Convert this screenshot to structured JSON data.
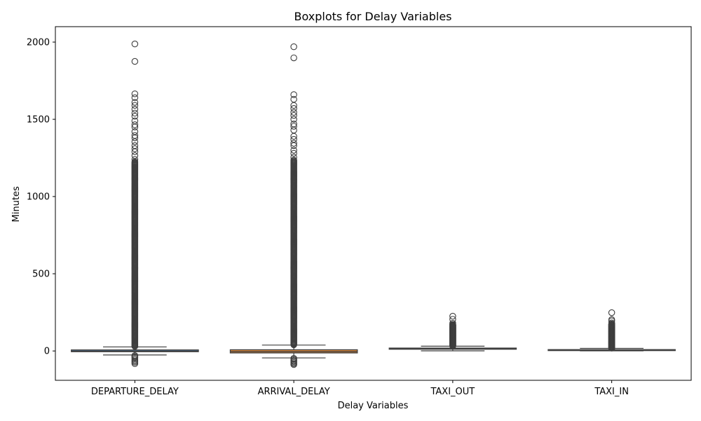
{
  "chart_data": {
    "type": "box",
    "title": "Boxplots for Delay Variables",
    "xlabel": "Delay Variables",
    "ylabel": "Minutes",
    "ylim": [
      -190,
      2100
    ],
    "yticks": [
      0,
      500,
      1000,
      1500,
      2000
    ],
    "grid": false,
    "categories": [
      "DEPARTURE_DELAY",
      "ARRIVAL_DELAY",
      "TAXI_OUT",
      "TAXI_IN"
    ],
    "colors": [
      "#4c6f8f",
      "#c97f3a",
      "#4f8a55",
      "#b04a4a"
    ],
    "boxes": [
      {
        "name": "DEPARTURE_DELAY",
        "whisker_low": -26,
        "q1": -5,
        "median": -2,
        "q3": 7,
        "whisker_high": 26,
        "outliers_high_range": [
          30,
          1230
        ],
        "outliers_high_sparse": [
          1240,
          1265,
          1290,
          1310,
          1330,
          1355,
          1380,
          1395,
          1420,
          1450,
          1465,
          1490,
          1520,
          1540,
          1565,
          1590,
          1610,
          1640,
          1665,
          1875,
          1988
        ],
        "outliers_low": [
          -30,
          -36,
          -42,
          -50,
          -58,
          -66,
          -73,
          -82
        ]
      },
      {
        "name": "ARRIVAL_DELAY",
        "whisker_low": -45,
        "q1": -13,
        "median": -5,
        "q3": 8,
        "whisker_high": 38,
        "outliers_high_range": [
          40,
          1240
        ],
        "outliers_high_sparse": [
          1255,
          1280,
          1300,
          1330,
          1345,
          1370,
          1390,
          1430,
          1455,
          1470,
          1500,
          1525,
          1545,
          1570,
          1590,
          1630,
          1660,
          1898,
          1970
        ],
        "outliers_low": [
          -48,
          -55,
          -62,
          -68,
          -75,
          -82,
          -88
        ]
      },
      {
        "name": "TAXI_OUT",
        "whisker_low": 1,
        "q1": 11,
        "median": 14,
        "q3": 19,
        "whisker_high": 31,
        "outliers_high_range": [
          33,
          172
        ],
        "outliers_high_sparse": [
          180,
          205,
          225
        ],
        "outliers_low": []
      },
      {
        "name": "TAXI_IN",
        "whisker_low": 1,
        "q1": 4,
        "median": 6,
        "q3": 9,
        "whisker_high": 17,
        "outliers_high_range": [
          19,
          175
        ],
        "outliers_high_sparse": [
          182,
          195,
          203,
          248
        ],
        "outliers_low": []
      }
    ]
  }
}
